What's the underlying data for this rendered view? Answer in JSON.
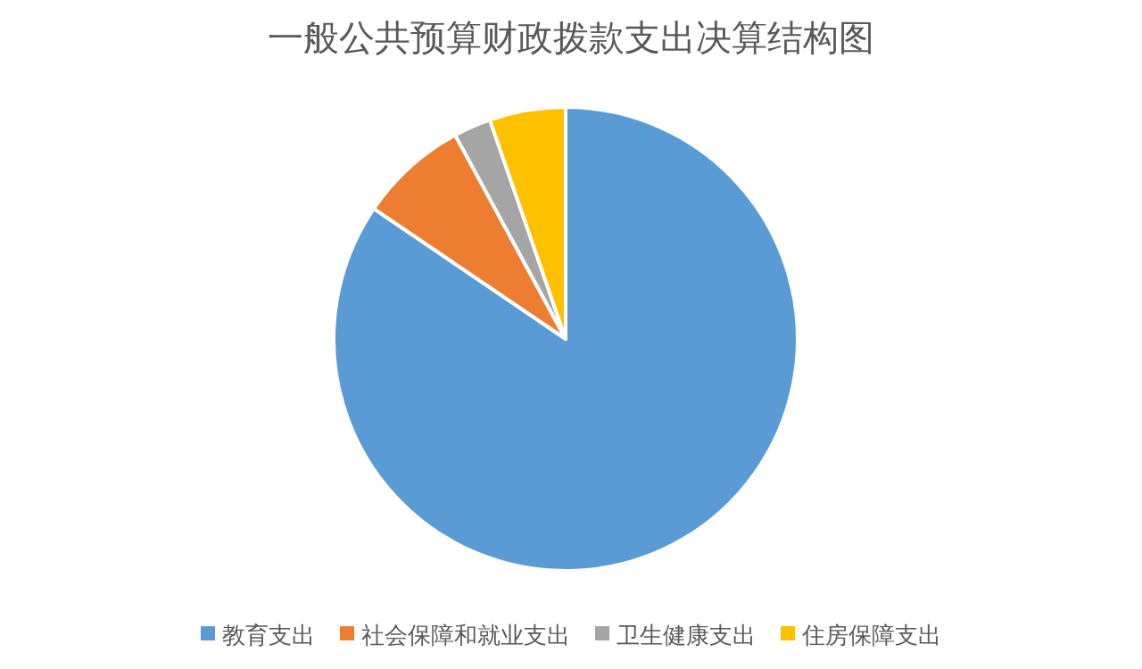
{
  "chart_data": {
    "type": "pie",
    "title": "一般公共预算财政拨款支出决算结构图",
    "categories": [
      "教育支出",
      "社会保障和就业支出",
      "卫生健康支出",
      "住房保障支出"
    ],
    "values": [
      84.5,
      7.6,
      2.6,
      5.3
    ],
    "colors": [
      "#5b9bd5",
      "#ed7d31",
      "#a5a5a5",
      "#ffc000"
    ],
    "legend": "bottom"
  }
}
